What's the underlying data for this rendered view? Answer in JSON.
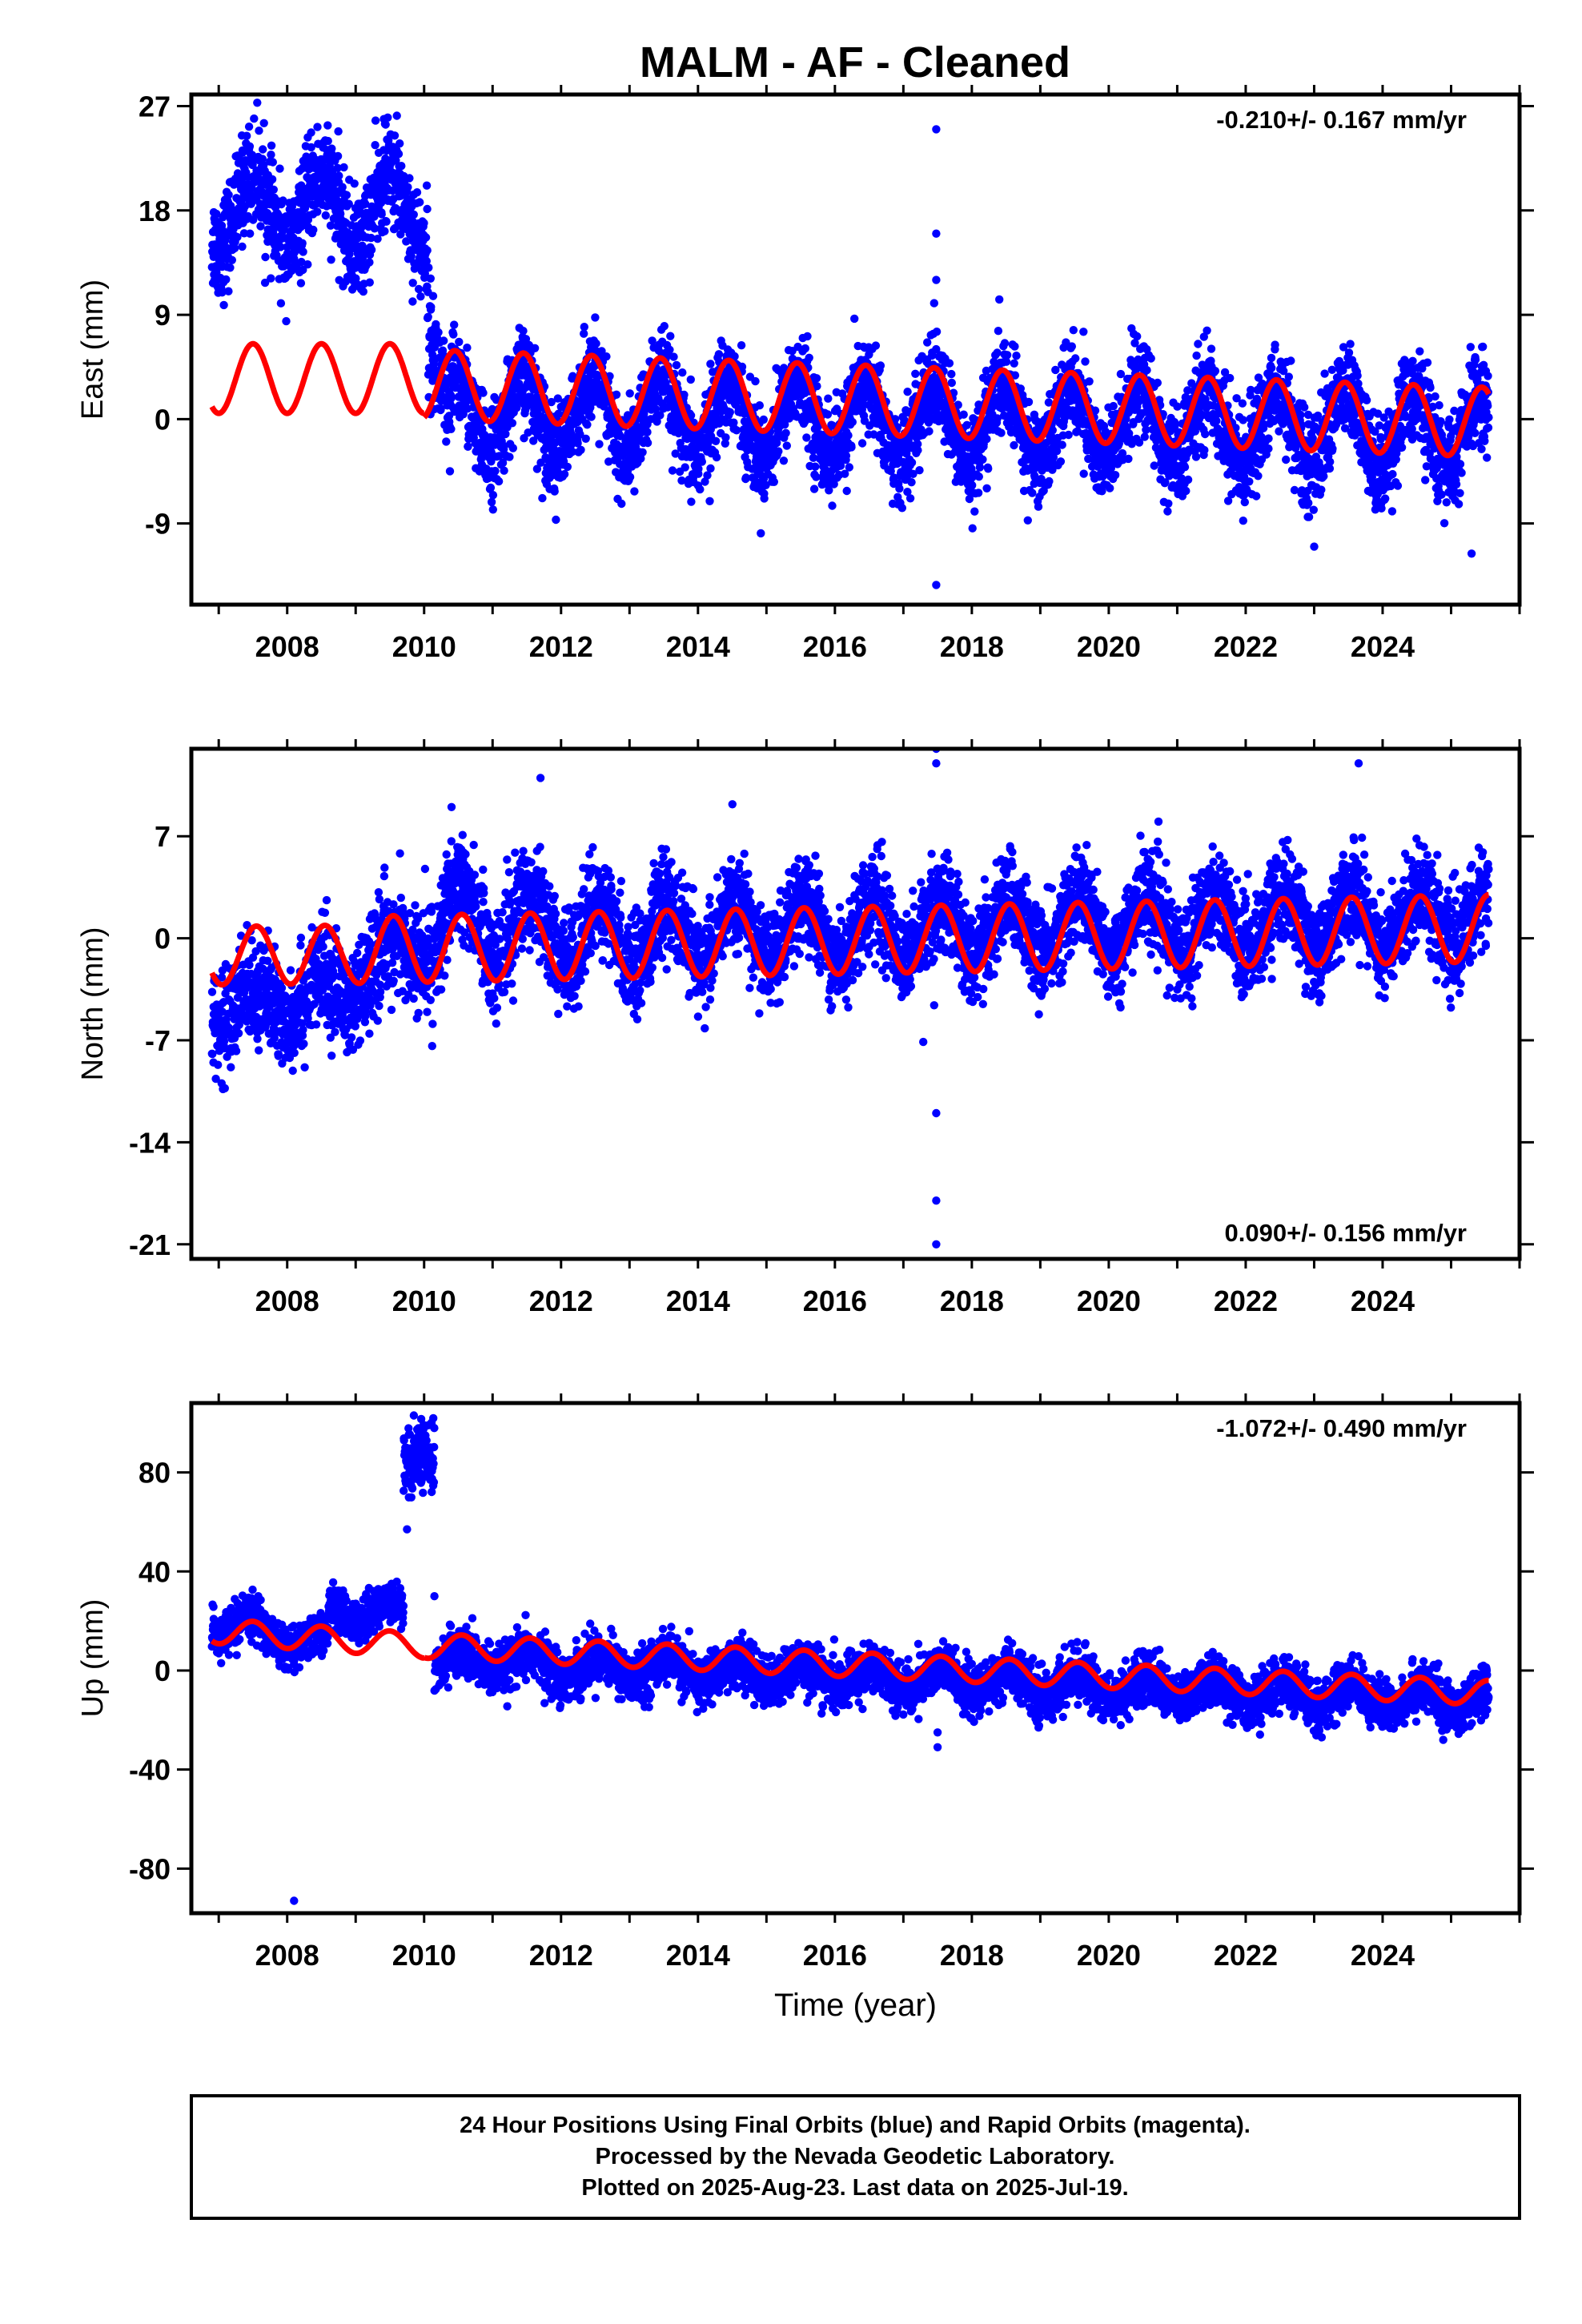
{
  "title": "MALM  - AF - Cleaned",
  "footer": {
    "lines": [
      "24 Hour Positions Using Final Orbits (blue) and Rapid Orbits (magenta).",
      "Processed by the Nevada Geodetic Laboratory.",
      "Plotted on 2025-Aug-23. Last data on 2025-Jul-19."
    ]
  },
  "colors": {
    "data_points": "#0000ff",
    "model_line": "#ff0000",
    "frame": "#000000"
  },
  "chart_data": [
    {
      "type": "scatter",
      "panel": "east",
      "ylabel": "East (mm)",
      "xlabel": "",
      "rate_label": "-0.210+/- 0.167 mm/yr",
      "rate_placement": "top-right",
      "xlim": [
        2006.6,
        2026.0
      ],
      "ylim": [
        -16,
        28
      ],
      "xticks": [
        "2008",
        "2010",
        "2012",
        "2014",
        "2016",
        "2018",
        "2020",
        "2022",
        "2024"
      ],
      "yticks": [
        "27",
        "18",
        "9",
        "0",
        "-9"
      ],
      "grid": false,
      "series": [
        {
          "kind": "points",
          "segments": [
            {
              "x_start": 2006.9,
              "x_end": 2010.05,
              "mean": 18.0,
              "amp": 3.2,
              "phase": 0.5,
              "noise": 2.2,
              "trend": 0
            },
            {
              "x_start": 2010.05,
              "x_end": 2010.4,
              "mean_start": 8.0,
              "mean_end": -0.5,
              "amp": 0,
              "phase": 0,
              "noise": 2.5,
              "trend": 0
            },
            {
              "x_start": 2010.4,
              "x_end": 2025.55,
              "mean": 0.5,
              "amp": 3.2,
              "phase": 0.45,
              "noise": 2.0,
              "trend": -0.1
            }
          ],
          "outliers": [
            [
              2017.48,
              25.0
            ],
            [
              2017.48,
              16.0
            ],
            [
              2017.48,
              12.0
            ],
            [
              2017.48,
              -14.3
            ],
            [
              2017.45,
              10.0
            ],
            [
              2023.0,
              -11.0
            ],
            [
              2025.3,
              -11.6
            ]
          ]
        },
        {
          "kind": "model",
          "segments": [
            {
              "x_start": 2006.9,
              "x_end": 2010.0,
              "mean": 3.5,
              "amp": 3.0,
              "phase": 0.5,
              "trend": 0
            },
            {
              "x_start": 2010.0,
              "x_end": 2025.55,
              "mean": 3.0,
              "amp": 3.0,
              "phase": 0.45,
              "trend": -0.21
            }
          ]
        }
      ]
    },
    {
      "type": "scatter",
      "panel": "north",
      "ylabel": "North (mm)",
      "xlabel": "",
      "rate_label": "0.090+/- 0.156 mm/yr",
      "rate_placement": "bottom-right",
      "xlim": [
        2006.6,
        2026.0
      ],
      "ylim": [
        -22,
        13
      ],
      "xticks": [
        "2008",
        "2010",
        "2012",
        "2014",
        "2016",
        "2018",
        "2020",
        "2022",
        "2024"
      ],
      "yticks": [
        "7",
        "0",
        "-7",
        "-14",
        "-21"
      ],
      "grid": false,
      "series": [
        {
          "kind": "points",
          "segments": [
            {
              "x_start": 2006.9,
              "x_end": 2009.0,
              "mean_start": -5.0,
              "mean_end": -3.5,
              "amp": 1.2,
              "phase": 0.5,
              "noise": 1.8,
              "trend": 0
            },
            {
              "x_start": 2009.0,
              "x_end": 2010.1,
              "mean_start": -2.5,
              "mean_end": 0.0,
              "amp": 1.5,
              "phase": 0.5,
              "noise": 1.8,
              "trend": 0
            },
            {
              "x_start": 2010.1,
              "x_end": 2012.0,
              "mean": 1.0,
              "amp": 2.5,
              "phase": 0.55,
              "noise": 1.8,
              "trend": 0
            },
            {
              "x_start": 2012.0,
              "x_end": 2025.55,
              "mean": 0.2,
              "amp": 2.0,
              "phase": 0.55,
              "noise": 1.6,
              "trend": 0.09
            }
          ],
          "outliers": [
            [
              2017.48,
              13.0
            ],
            [
              2017.48,
              12.0
            ],
            [
              2017.48,
              -12.0
            ],
            [
              2017.48,
              -18.0
            ],
            [
              2017.48,
              -21.0
            ],
            [
              2017.45,
              -4.6
            ],
            [
              2023.65,
              12.0
            ],
            [
              2011.7,
              11.0
            ],
            [
              2010.4,
              9.0
            ]
          ]
        },
        {
          "kind": "model",
          "segments": [
            {
              "x_start": 2006.9,
              "x_end": 2009.0,
              "mean": -1.2,
              "amp": 2.0,
              "phase": 0.55,
              "trend": 0.05
            },
            {
              "x_start": 2009.0,
              "x_end": 2025.55,
              "mean": -0.8,
              "amp": 2.3,
              "phase": 0.55,
              "trend": 0.09
            }
          ]
        }
      ]
    },
    {
      "type": "scatter",
      "panel": "up",
      "ylabel": "Up (mm)",
      "xlabel": "Time (year)",
      "rate_label": "-1.072+/- 0.490 mm/yr",
      "rate_placement": "top-right",
      "xlim": [
        2006.6,
        2026.0
      ],
      "ylim": [
        -98,
        108
      ],
      "xticks": [
        "2008",
        "2010",
        "2012",
        "2014",
        "2016",
        "2018",
        "2020",
        "2022",
        "2024"
      ],
      "yticks": [
        "80",
        "40",
        "0",
        "-40",
        "-80"
      ],
      "grid": false,
      "series": [
        {
          "kind": "points",
          "segments": [
            {
              "x_start": 2006.9,
              "x_end": 2008.6,
              "mean_start": 20.0,
              "mean_end": 10.0,
              "amp": 5.0,
              "phase": 0.5,
              "noise": 4.0,
              "trend": 0
            },
            {
              "x_start": 2008.6,
              "x_end": 2009.7,
              "mean": 24.0,
              "amp": 4.0,
              "phase": 0.5,
              "noise": 4.0,
              "trend": 0
            },
            {
              "x_start": 2009.7,
              "x_end": 2010.15,
              "mean": 85.0,
              "amp": 0,
              "phase": 0,
              "noise": 7.0,
              "trend": 0
            },
            {
              "x_start": 2010.15,
              "x_end": 2025.55,
              "mean": 4.0,
              "amp": 4.5,
              "phase": 0.55,
              "noise": 5.0,
              "trend": -1.07
            }
          ],
          "outliers": [
            [
              2008.1,
              -93.0
            ],
            [
              2009.75,
              57.0
            ],
            [
              2009.85,
              103.0
            ],
            [
              2017.5,
              -31.0
            ],
            [
              2017.5,
              -25.0
            ],
            [
              2010.15,
              30.0
            ]
          ]
        },
        {
          "kind": "model",
          "segments": [
            {
              "x_start": 2006.9,
              "x_end": 2010.0,
              "mean_start": 16.0,
              "mean_end": 10.0,
              "amp": 5.0,
              "phase": 0.5,
              "trend": 0
            },
            {
              "x_start": 2010.0,
              "x_end": 2025.55,
              "mean_start": 10.0,
              "mean_end": -9.0,
              "amp": 5.0,
              "phase": 0.55,
              "trend": 0
            }
          ]
        }
      ]
    }
  ]
}
